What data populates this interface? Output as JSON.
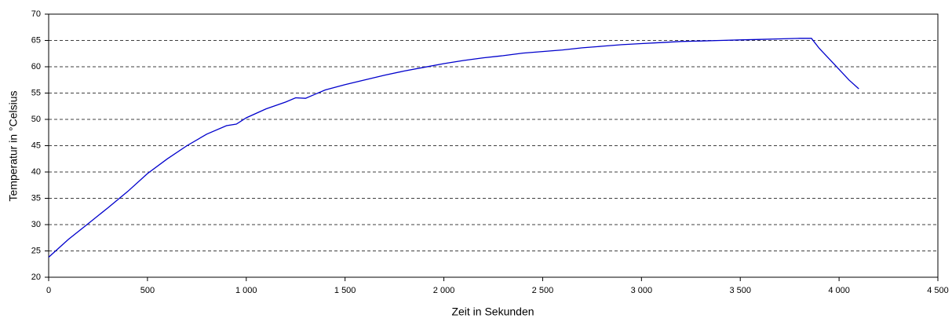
{
  "chart_data": {
    "type": "line",
    "xlabel": "Zeit in Sekunden",
    "ylabel": "Temperatur in °Celsius",
    "x": [
      0,
      50,
      100,
      200,
      300,
      400,
      500,
      600,
      700,
      800,
      900,
      950,
      1000,
      1100,
      1200,
      1250,
      1300,
      1350,
      1400,
      1500,
      1600,
      1700,
      1800,
      1900,
      2000,
      2100,
      2200,
      2300,
      2400,
      2500,
      2600,
      2700,
      2800,
      2900,
      3000,
      3100,
      3200,
      3300,
      3400,
      3500,
      3600,
      3700,
      3800,
      3860,
      3900,
      3950,
      4000,
      4050,
      4100
    ],
    "series": [
      {
        "name": "Temperatur",
        "color": "#0000cc",
        "values": [
          23.8,
          25.5,
          27.2,
          30.2,
          33.2,
          36.3,
          39.7,
          42.5,
          45,
          47.2,
          48.8,
          49.1,
          50.3,
          52,
          53.3,
          54.1,
          54.0,
          54.8,
          55.6,
          56.6,
          57.5,
          58.4,
          59.2,
          59.9,
          60.6,
          61.2,
          61.7,
          62.1,
          62.6,
          62.9,
          63.2,
          63.6,
          63.9,
          64.2,
          64.4,
          64.6,
          64.8,
          64.9,
          65,
          65.1,
          65.2,
          65.3,
          65.4,
          65.4,
          63.5,
          61.5,
          59.5,
          57.5,
          55.8
        ]
      }
    ],
    "xlim": [
      0,
      4500
    ],
    "xticks": [
      0,
      500,
      {
        "value": 1000,
        "label": "1 000"
      },
      {
        "value": 1500,
        "label": "1 500"
      },
      {
        "value": 2000,
        "label": "2 000"
      },
      {
        "value": 2500,
        "label": "2 500"
      },
      {
        "value": 3000,
        "label": "3 000"
      },
      {
        "value": 3500,
        "label": "3 500"
      },
      {
        "value": 4000,
        "label": "4 000"
      },
      {
        "value": 4500,
        "label": "4 500"
      }
    ],
    "ylim": [
      20,
      70
    ],
    "yticks": [
      20,
      25,
      30,
      35,
      40,
      45,
      50,
      55,
      60,
      65,
      70
    ],
    "grid": true
  }
}
